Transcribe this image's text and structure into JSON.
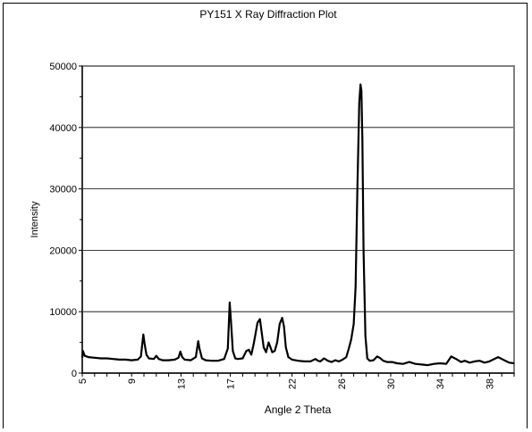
{
  "chart_data": {
    "type": "line",
    "title": "PY151 X Ray Diffraction Plot",
    "xlabel": "Angle 2 Theta",
    "ylabel": "Intensity",
    "xlim": [
      5,
      40
    ],
    "ylim": [
      0,
      50000
    ],
    "x_ticks": [
      5,
      9,
      13,
      17,
      22,
      26,
      30,
      34,
      38
    ],
    "y_ticks": [
      0,
      10000,
      20000,
      30000,
      40000,
      50000
    ],
    "grid": "horizontal",
    "legend": "none",
    "line_color": "#000000",
    "series": [
      {
        "x": [
          5.0,
          5.05,
          5.2,
          5.5,
          6.0,
          6.5,
          7.0,
          7.5,
          8.0,
          8.5,
          9.0,
          9.5,
          9.75,
          9.95,
          10.05,
          10.2,
          10.4,
          10.8,
          11.0,
          11.2,
          11.5,
          12.0,
          12.5,
          12.8,
          12.95,
          13.1,
          13.3,
          13.8,
          14.2,
          14.4,
          14.5,
          14.7,
          15.0,
          15.5,
          16.0,
          16.5,
          16.8,
          16.95,
          17.05,
          17.2,
          17.4,
          17.6,
          18.0,
          18.3,
          18.5,
          18.7,
          18.9,
          19.2,
          19.4,
          19.55,
          19.7,
          19.9,
          20.1,
          20.25,
          20.4,
          20.6,
          20.8,
          21.0,
          21.2,
          21.35,
          21.5,
          21.7,
          22.0,
          22.5,
          23.0,
          23.5,
          23.9,
          24.1,
          24.3,
          24.6,
          24.9,
          25.2,
          25.5,
          25.8,
          26.1,
          26.4,
          26.6,
          26.8,
          27.0,
          27.15,
          27.3,
          27.45,
          27.55,
          27.62,
          27.7,
          27.8,
          27.95,
          28.1,
          28.3,
          28.6,
          28.9,
          29.1,
          29.4,
          29.7,
          30.1,
          30.5,
          31.0,
          31.5,
          32.0,
          32.5,
          33.0,
          33.5,
          34.0,
          34.5,
          34.9,
          35.3,
          35.7,
          36.0,
          36.4,
          36.8,
          37.2,
          37.6,
          38.0,
          38.4,
          38.7,
          39.0,
          39.3,
          39.6,
          40.0
        ],
        "y": [
          2500,
          3600,
          2800,
          2600,
          2500,
          2400,
          2400,
          2300,
          2200,
          2200,
          2100,
          2200,
          2700,
          6300,
          4800,
          3000,
          2400,
          2300,
          2800,
          2300,
          2100,
          2100,
          2200,
          2500,
          3500,
          2600,
          2200,
          2100,
          2600,
          5200,
          4000,
          2400,
          2100,
          2000,
          2000,
          2300,
          4000,
          11500,
          8500,
          3600,
          2400,
          2300,
          2400,
          3600,
          3800,
          3000,
          4800,
          8200,
          8800,
          6500,
          4200,
          3400,
          5000,
          4200,
          3400,
          3600,
          5000,
          8000,
          9000,
          7600,
          4200,
          2600,
          2200,
          2000,
          1900,
          1900,
          2300,
          2000,
          1900,
          2400,
          2000,
          1800,
          2100,
          1900,
          2200,
          2600,
          4000,
          5500,
          8000,
          14000,
          30000,
          44000,
          47000,
          46000,
          38000,
          20000,
          6000,
          2400,
          2000,
          2100,
          2700,
          2500,
          2000,
          1800,
          1800,
          1600,
          1500,
          1800,
          1500,
          1400,
          1300,
          1500,
          1600,
          1500,
          2700,
          2300,
          1800,
          2000,
          1700,
          1900,
          2000,
          1700,
          1900,
          2300,
          2600,
          2300,
          2000,
          1700,
          1600
        ]
      }
    ]
  }
}
